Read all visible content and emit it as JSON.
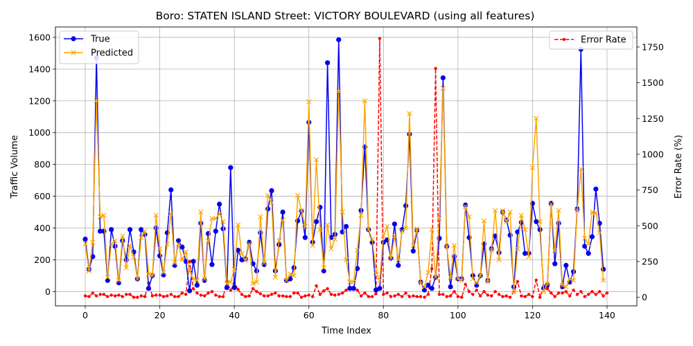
{
  "chart_data": {
    "type": "line",
    "title": "Boro: STATEN ISLAND Street: VICTORY BOULEVARD (using all features)",
    "xlabel": "Time Index",
    "ylabel": "Traffic Volume",
    "y2label": "Error Rate (%)",
    "xlim": [
      -8,
      148
    ],
    "ylim": [
      -90,
      1665
    ],
    "y2lim": [
      -60,
      1890
    ],
    "x_ticks": [
      0,
      20,
      40,
      60,
      80,
      100,
      120,
      140
    ],
    "y_ticks": [
      0,
      200,
      400,
      600,
      800,
      1000,
      1200,
      1400,
      1600
    ],
    "y2_ticks": [
      0,
      250,
      500,
      750,
      1000,
      1250,
      1500,
      1750
    ],
    "grid": true,
    "legend_left": "upper-left",
    "legend_right": "upper-right",
    "series": [
      {
        "name": "True",
        "axis": "left",
        "color": "#0000ee",
        "marker": "circle",
        "values": [
          330,
          140,
          220,
          1470,
          380,
          380,
          70,
          390,
          285,
          55,
          320,
          200,
          390,
          250,
          80,
          390,
          360,
          20,
          100,
          400,
          225,
          105,
          370,
          640,
          165,
          320,
          280,
          190,
          5,
          190,
          40,
          430,
          70,
          365,
          170,
          380,
          550,
          395,
          25,
          780,
          25,
          260,
          200,
          205,
          310,
          175,
          130,
          370,
          170,
          520,
          635,
          130,
          295,
          500,
          70,
          80,
          150,
          445,
          505,
          340,
          1065,
          310,
          440,
          530,
          130,
          1440,
          340,
          360,
          1585,
          375,
          410,
          20,
          20,
          145,
          510,
          910,
          390,
          310,
          10,
          20,
          310,
          325,
          210,
          425,
          165,
          390,
          540,
          990,
          255,
          385,
          60,
          10,
          40,
          20,
          90,
          335,
          1345,
          285,
          30,
          220,
          80,
          80,
          545,
          340,
          100,
          40,
          100,
          300,
          70,
          270,
          350,
          245,
          500,
          450,
          355,
          30,
          375,
          435,
          240,
          240,
          555,
          440,
          390,
          20,
          40,
          555,
          175,
          430,
          30,
          165,
          60,
          125,
          520,
          1525,
          285,
          240,
          345,
          645,
          430,
          140
        ]
      },
      {
        "name": "Predicted",
        "axis": "left",
        "color": "#ffa500",
        "marker": "x",
        "values": [
          300,
          130,
          310,
          1200,
          470,
          480,
          90,
          300,
          320,
          70,
          350,
          150,
          290,
          220,
          80,
          340,
          380,
          110,
          100,
          480,
          270,
          120,
          300,
          490,
          180,
          300,
          200,
          250,
          130,
          80,
          70,
          500,
          80,
          320,
          460,
          460,
          490,
          440,
          50,
          60,
          140,
          420,
          240,
          195,
          300,
          50,
          60,
          470,
          180,
          605,
          560,
          90,
          320,
          450,
          70,
          110,
          100,
          605,
          510,
          410,
          1195,
          290,
          830,
          390,
          150,
          420,
          270,
          330,
          1260,
          500,
          200,
          60,
          60,
          260,
          480,
          1200,
          390,
          330,
          130,
          70,
          350,
          410,
          210,
          350,
          200,
          380,
          400,
          1120,
          290,
          395,
          50,
          30,
          120,
          390,
          90,
          460,
          1280,
          280,
          90,
          290,
          80,
          70,
          535,
          470,
          80,
          55,
          100,
          445,
          60,
          260,
          510,
          200,
          510,
          440,
          500,
          0,
          270,
          480,
          390,
          220,
          780,
          1090,
          440,
          0,
          50,
          550,
          260,
          510,
          40,
          30,
          80,
          70,
          510,
          770,
          335,
          300,
          500,
          495,
          370,
          70
        ]
      },
      {
        "name": "Error Rate",
        "axis": "right",
        "color": "#ff0000",
        "marker": "dot",
        "dashed": true,
        "values": [
          10,
          5,
          30,
          10,
          20,
          20,
          5,
          15,
          10,
          15,
          5,
          20,
          20,
          0,
          0,
          10,
          5,
          100,
          10,
          15,
          15,
          5,
          10,
          20,
          5,
          5,
          30,
          20,
          250,
          60,
          30,
          15,
          10,
          30,
          40,
          15,
          5,
          5,
          110,
          50,
          100,
          55,
          20,
          5,
          10,
          60,
          40,
          25,
          10,
          10,
          20,
          30,
          10,
          10,
          5,
          5,
          30,
          30,
          0,
          10,
          15,
          5,
          80,
          20,
          45,
          60,
          20,
          15,
          20,
          30,
          50,
          60,
          60,
          50,
          10,
          30,
          5,
          5,
          25,
          1810,
          20,
          30,
          5,
          10,
          20,
          5,
          30,
          5,
          10,
          5,
          5,
          0,
          20,
          200,
          1600,
          20,
          20,
          5,
          10,
          40,
          5,
          0,
          90,
          40,
          20,
          50,
          10,
          40,
          15,
          10,
          40,
          20,
          5,
          10,
          0,
          40,
          110,
          10,
          5,
          20,
          5,
          120,
          0,
          80,
          60,
          30,
          5,
          30,
          30,
          40,
          10,
          50,
          20,
          40,
          5,
          20,
          40,
          20,
          40,
          10,
          30
        ]
      }
    ]
  }
}
